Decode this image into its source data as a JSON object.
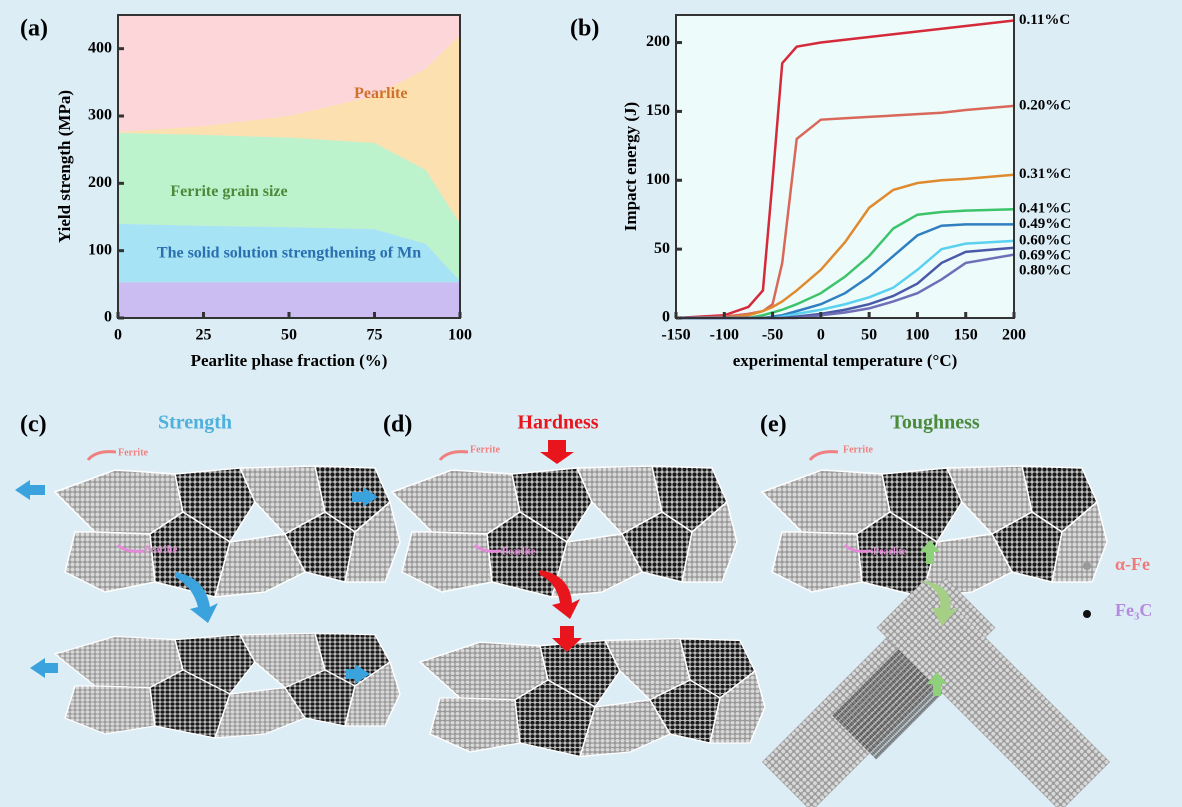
{
  "chart_data": [
    {
      "type": "area",
      "panel": "(a)",
      "xlabel": "Pearlite phase fraction (%)",
      "ylabel": "Yield strength (MPa)",
      "x": [
        0,
        25,
        50,
        75,
        90,
        100
      ],
      "series": [
        {
          "color": "#cbbcf2",
          "values": [
            53,
            53,
            53,
            53,
            53,
            53
          ]
        },
        {
          "name": "The solid solution strengthening of Mn",
          "color": "#a6e4f5",
          "label_color": "#2a6fb0",
          "values": [
            87,
            84,
            82,
            79,
            57,
            2
          ]
        },
        {
          "name": "Ferrite grain size",
          "color": "#bdf3cc",
          "label_color": "#4a8a3a",
          "values": [
            135,
            135,
            133,
            128,
            110,
            85
          ]
        },
        {
          "name": "Pearlite",
          "color": "#fde0b0",
          "label_color": "#d0702a",
          "values": [
            1,
            13,
            32,
            70,
            150,
            280
          ]
        }
      ],
      "background": "#fdd6da",
      "xlim": [
        0,
        100
      ],
      "xticks": [
        0,
        25,
        50,
        75,
        100
      ],
      "ylim": [
        0,
        450
      ],
      "yticks": [
        0,
        100,
        200,
        300,
        400
      ]
    },
    {
      "type": "line",
      "panel": "(b)",
      "xlabel": "experimental temperature (°C)",
      "ylabel": "Impact energy (J)",
      "x": [
        -150,
        -100,
        -75,
        -60,
        -50,
        -40,
        -25,
        0,
        25,
        50,
        75,
        100,
        125,
        150,
        200
      ],
      "series": [
        {
          "name": "0.11%C",
          "color": "#d42a3a",
          "values": [
            0,
            2,
            8,
            20,
            100,
            185,
            197,
            200,
            202,
            204,
            206,
            208,
            210,
            212,
            216
          ]
        },
        {
          "name": "0.20%C",
          "color": "#d9685a",
          "values": [
            0,
            1,
            3,
            5,
            10,
            40,
            130,
            144,
            145,
            146,
            147,
            148,
            149,
            151,
            154
          ]
        },
        {
          "name": "0.31%C",
          "color": "#e08a2e",
          "values": [
            0,
            0,
            2,
            5,
            8,
            12,
            20,
            35,
            55,
            80,
            93,
            98,
            100,
            101,
            104
          ]
        },
        {
          "name": "0.41%C",
          "color": "#3cc46a",
          "values": [
            0,
            0,
            0,
            2,
            4,
            6,
            10,
            18,
            30,
            45,
            65,
            75,
            77,
            78,
            79
          ]
        },
        {
          "name": "0.49%C",
          "color": "#2f7fc1",
          "values": [
            0,
            0,
            0,
            0,
            1,
            2,
            5,
            10,
            18,
            30,
            45,
            60,
            67,
            68,
            68
          ]
        },
        {
          "name": "0.60%C",
          "color": "#5ad1ee",
          "values": [
            0,
            0,
            0,
            0,
            0,
            1,
            3,
            6,
            10,
            15,
            22,
            35,
            50,
            54,
            56
          ]
        },
        {
          "name": "0.69%C",
          "color": "#4a5aa8",
          "values": [
            0,
            0,
            0,
            0,
            0,
            0,
            1,
            3,
            6,
            10,
            16,
            25,
            40,
            48,
            51
          ]
        },
        {
          "name": "0.80%C",
          "color": "#6f6fb8",
          "values": [
            0,
            0,
            0,
            0,
            0,
            0,
            0,
            2,
            4,
            7,
            12,
            18,
            28,
            40,
            46
          ]
        }
      ],
      "xlim": [
        -150,
        200
      ],
      "xticks": [
        -150,
        -100,
        -50,
        0,
        50,
        100,
        150,
        200
      ],
      "ylim": [
        0,
        220
      ],
      "yticks": [
        0,
        50,
        100,
        150,
        200
      ]
    }
  ],
  "panels": [
    {
      "label": "(c)",
      "title": "Strength",
      "ferrite": "Ferrite",
      "pearlite": "Pearlite"
    },
    {
      "label": "(d)",
      "title": "Hardness",
      "ferrite": "Ferrite",
      "pearlite": "Pearlite"
    },
    {
      "label": "(e)",
      "title": "Toughness",
      "ferrite": "Ferrite",
      "pearlite": "Pearlite"
    }
  ],
  "legend": {
    "alpha_fe": "α-Fe",
    "fe3c": "Fe₃C"
  }
}
